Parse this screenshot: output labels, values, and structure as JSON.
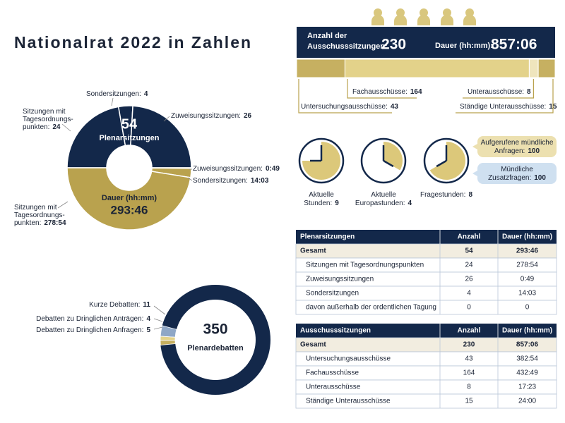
{
  "title": "Nationalrat 2022 in Zahlen",
  "plenary": {
    "count": 54,
    "count_label": "Plenarsitzungen",
    "sessions": [
      {
        "label": [
          "Sitzungen mit",
          "Tagesordnungs-",
          "punkten:"
        ],
        "value": 24
      },
      {
        "label": [
          "Sondersitzungen:"
        ],
        "value": 4
      },
      {
        "label": [
          "Zuweisungssitzungen:"
        ],
        "value": 26
      }
    ],
    "duration_label": "Dauer (hh:mm)",
    "duration": "293:46",
    "durations": [
      {
        "label": [
          "Zuweisungssitzungen:"
        ],
        "value": "0:49"
      },
      {
        "label": [
          "Sondersitzungen:"
        ],
        "value": "14:03"
      },
      {
        "label": [
          "Sitzungen mit",
          "Tagesordnungs-",
          "punkten:"
        ],
        "value": "278:54"
      }
    ]
  },
  "committees": {
    "count_label": [
      "Anzahl der",
      "Ausschusssitzungen:"
    ],
    "count": 230,
    "duration_label": "Dauer (hh:mm):",
    "duration": "857:06",
    "parts": [
      {
        "label": "Untersuchungsausschüsse:",
        "value": 43
      },
      {
        "label": "Fachausschüsse:",
        "value": 164
      },
      {
        "label": "Unterausschüsse:",
        "value": 8
      },
      {
        "label": "Ständige Unterausschüsse:",
        "value": 15
      }
    ]
  },
  "hours": [
    {
      "label": [
        "Aktuelle",
        "Stunden:"
      ],
      "value": 9
    },
    {
      "label": [
        "Aktuelle",
        "Europastunden:"
      ],
      "value": 4
    },
    {
      "label": [
        "Fragestunden:"
      ],
      "value": 8
    }
  ],
  "questions": [
    {
      "label": [
        "Aufgerufene mündliche",
        "Anfragen:"
      ],
      "value": 100
    },
    {
      "label": [
        "Mündliche",
        "Zusatzfragen:"
      ],
      "value": 100
    }
  ],
  "debates": {
    "total": 350,
    "total_label": "Plenardebatten",
    "parts": [
      {
        "label": "Kurze Debatten:",
        "value": 11
      },
      {
        "label": "Debatten zu Dringlichen Anträgen:",
        "value": 4
      },
      {
        "label": "Debatten zu Dringlichen Anfragen:",
        "value": 5
      }
    ]
  },
  "tables": [
    {
      "columns": [
        "Plenarsitzungen",
        "Anzahl",
        "Dauer (hh:mm)"
      ],
      "rows": [
        [
          "Gesamt",
          54,
          "293:46"
        ],
        [
          "Sitzungen mit Tagesordnungspunkten",
          24,
          "278:54"
        ],
        [
          "Zuweisungssitzungen",
          26,
          "0:49"
        ],
        [
          "Sondersitzungen",
          4,
          "14:03"
        ],
        [
          "davon außerhalb der ordentlichen Tagung",
          0,
          "0"
        ]
      ]
    },
    {
      "columns": [
        "Ausschusssitzungen",
        "Anzahl",
        "Dauer (hh:mm)"
      ],
      "rows": [
        [
          "Gesamt",
          230,
          "857:06"
        ],
        [
          "Untersuchungsausschüsse",
          43,
          "382:54"
        ],
        [
          "Fachausschüsse",
          164,
          "432:49"
        ],
        [
          "Unterausschüsse",
          8,
          "17:23"
        ],
        [
          "Ständige Unterausschüsse",
          15,
          "24:00"
        ]
      ]
    }
  ]
}
